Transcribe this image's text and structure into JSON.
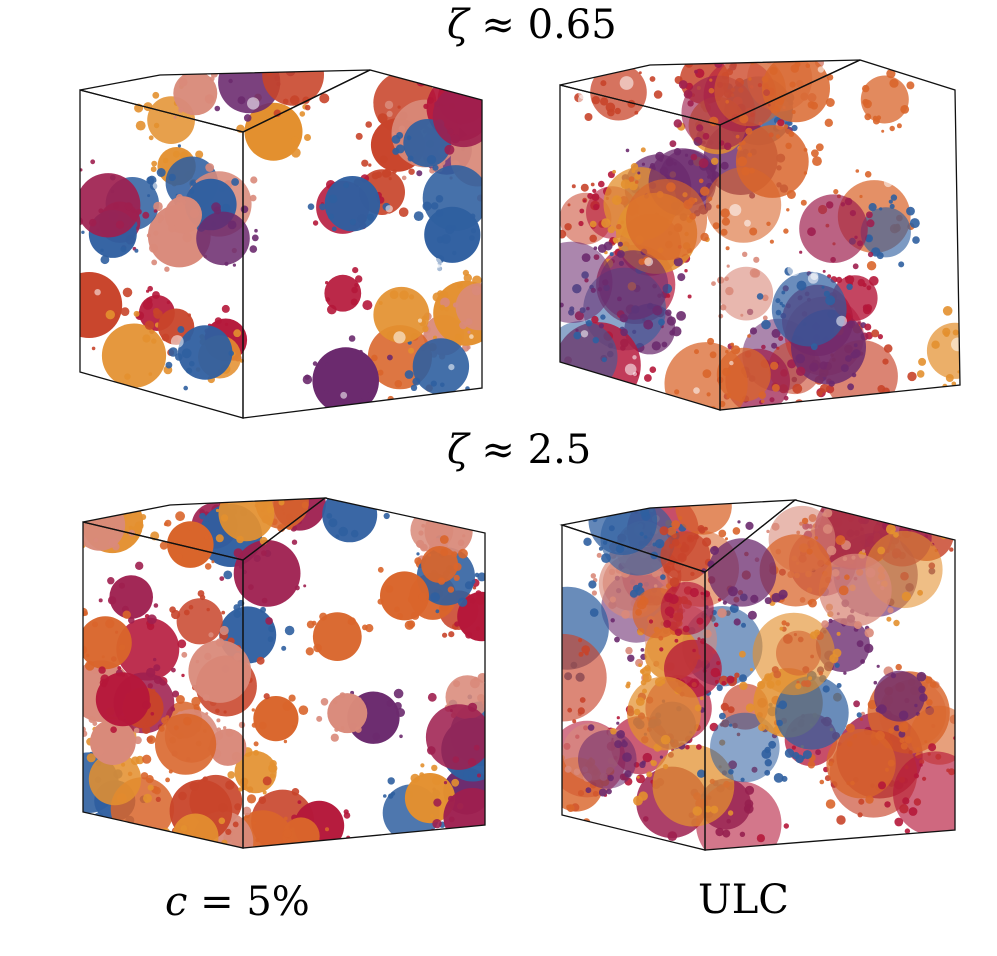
{
  "labels": {
    "zeta_low": {
      "symbol": "ζ",
      "rest": " ≈ 0.65"
    },
    "zeta_high": {
      "symbol": "ζ",
      "rest": " ≈ 2.5"
    },
    "column_left": {
      "symbol": "c",
      "rest": " = 5%"
    },
    "column_right": "ULC"
  },
  "palette": [
    "#b5173a",
    "#d9652b",
    "#e3902f",
    "#d98a7a",
    "#6b2a6e",
    "#2f5fa0",
    "#9e1f4f",
    "#c8442a"
  ],
  "panels": [
    {
      "id": "top-left",
      "seed": 11,
      "style": "clustered"
    },
    {
      "id": "top-right",
      "seed": 23,
      "style": "diffuse"
    },
    {
      "id": "bottom-left",
      "seed": 37,
      "style": "clustered-dense"
    },
    {
      "id": "bottom-right",
      "seed": 53,
      "style": "diffuse-dense"
    }
  ]
}
